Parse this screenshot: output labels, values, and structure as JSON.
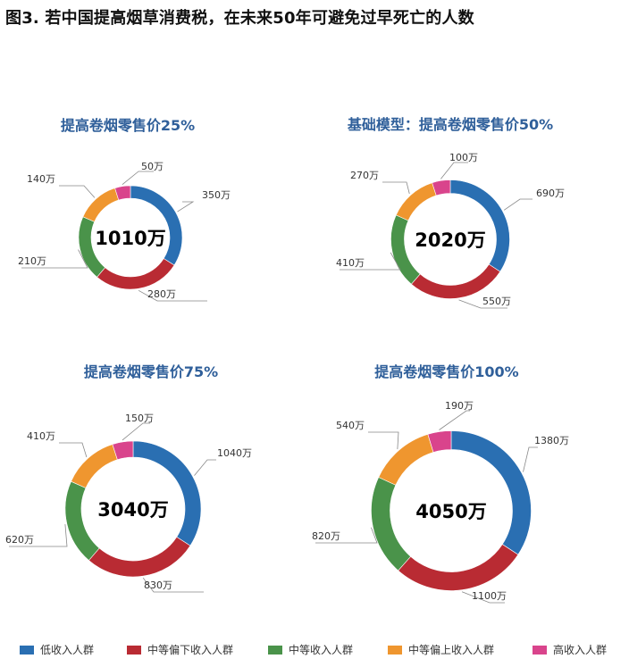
{
  "figure": {
    "title": "图3. 若中国提高烟草消费税，在未来50年可避免过早死亡的人数"
  },
  "legend": [
    {
      "label": "低收入人群",
      "color": "#2a6fb2"
    },
    {
      "label": "中等偏下收入人群",
      "color": "#b92b33"
    },
    {
      "label": "中等收入人群",
      "color": "#4a934a"
    },
    {
      "label": "中等偏上收入人群",
      "color": "#ef962f"
    },
    {
      "label": "高收入人群",
      "color": "#d9448c"
    }
  ],
  "chart_data": [
    {
      "type": "pie",
      "title": "提高卷烟零售价25%",
      "center_label": "1010万",
      "categories": [
        "低收入人群",
        "中等偏下收入人群",
        "中等收入人群",
        "中等偏上收入人群",
        "高收入人群"
      ],
      "values": [
        350,
        280,
        210,
        140,
        50
      ],
      "data_labels": [
        "350万",
        "280万",
        "210万",
        "140万",
        "50万"
      ],
      "total": 1010,
      "unit": "万"
    },
    {
      "type": "pie",
      "title": "基础模型：提高卷烟零售价50%",
      "center_label": "2020万",
      "categories": [
        "低收入人群",
        "中等偏下收入人群",
        "中等收入人群",
        "中等偏上收入人群",
        "高收入人群"
      ],
      "values": [
        690,
        550,
        410,
        270,
        100
      ],
      "data_labels": [
        "690万",
        "550万",
        "410万",
        "270万",
        "100万"
      ],
      "total": 2020,
      "unit": "万"
    },
    {
      "type": "pie",
      "title": "提高卷烟零售价75%",
      "center_label": "3040万",
      "categories": [
        "低收入人群",
        "中等偏下收入人群",
        "中等收入人群",
        "中等偏上收入人群",
        "高收入人群"
      ],
      "values": [
        1040,
        830,
        620,
        410,
        150
      ],
      "data_labels": [
        "1040万",
        "830万",
        "620万",
        "410万",
        "150万"
      ],
      "total": 3040,
      "unit": "万"
    },
    {
      "type": "pie",
      "title": "提高卷烟零售价100%",
      "center_label": "4050万",
      "categories": [
        "低收入人群",
        "中等偏下收入人群",
        "中等收入人群",
        "中等偏上收入人群",
        "高收入人群"
      ],
      "values": [
        1380,
        1100,
        820,
        540,
        190
      ],
      "data_labels": [
        "1380万",
        "1100万",
        "820万",
        "540万",
        "190万"
      ],
      "total": 4050,
      "unit": "万"
    }
  ]
}
